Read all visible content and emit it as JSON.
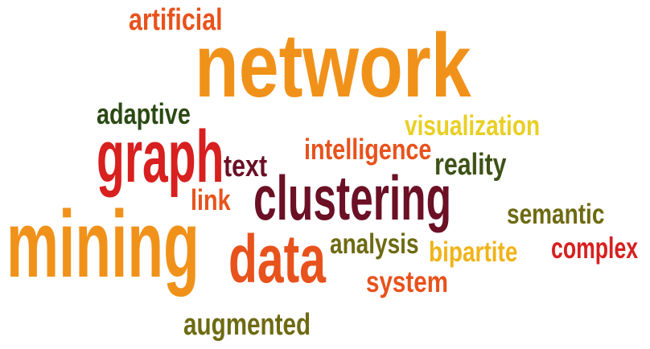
{
  "word_cloud": {
    "background": "#ffffff",
    "words": [
      {
        "id": "artificial",
        "text": "artificial",
        "color": "#e8521c"
      },
      {
        "id": "network",
        "text": "network",
        "color": "#f0921a"
      },
      {
        "id": "adaptive",
        "text": "adaptive",
        "color": "#2b4a14"
      },
      {
        "id": "visualization",
        "text": "visualization",
        "color": "#e9cf24"
      },
      {
        "id": "intelligence",
        "text": "intelligence",
        "color": "#e8521c"
      },
      {
        "id": "graph",
        "text": "graph",
        "color": "#d7201f"
      },
      {
        "id": "text",
        "text": "text",
        "color": "#6b1025"
      },
      {
        "id": "reality",
        "text": "reality",
        "color": "#3e5217"
      },
      {
        "id": "clustering",
        "text": "clustering",
        "color": "#6b1025"
      },
      {
        "id": "link",
        "text": "link",
        "color": "#e8521c"
      },
      {
        "id": "semantic",
        "text": "semantic",
        "color": "#6e6a12"
      },
      {
        "id": "mining",
        "text": "mining",
        "color": "#f0921a"
      },
      {
        "id": "data",
        "text": "data",
        "color": "#e8521c"
      },
      {
        "id": "analysis",
        "text": "analysis",
        "color": "#6e6a12"
      },
      {
        "id": "bipartite",
        "text": "bipartite",
        "color": "#f0b31a"
      },
      {
        "id": "complex",
        "text": "complex",
        "color": "#d7201f"
      },
      {
        "id": "system",
        "text": "system",
        "color": "#e8521c"
      },
      {
        "id": "augmented",
        "text": "augmented",
        "color": "#6e6a12"
      }
    ]
  }
}
